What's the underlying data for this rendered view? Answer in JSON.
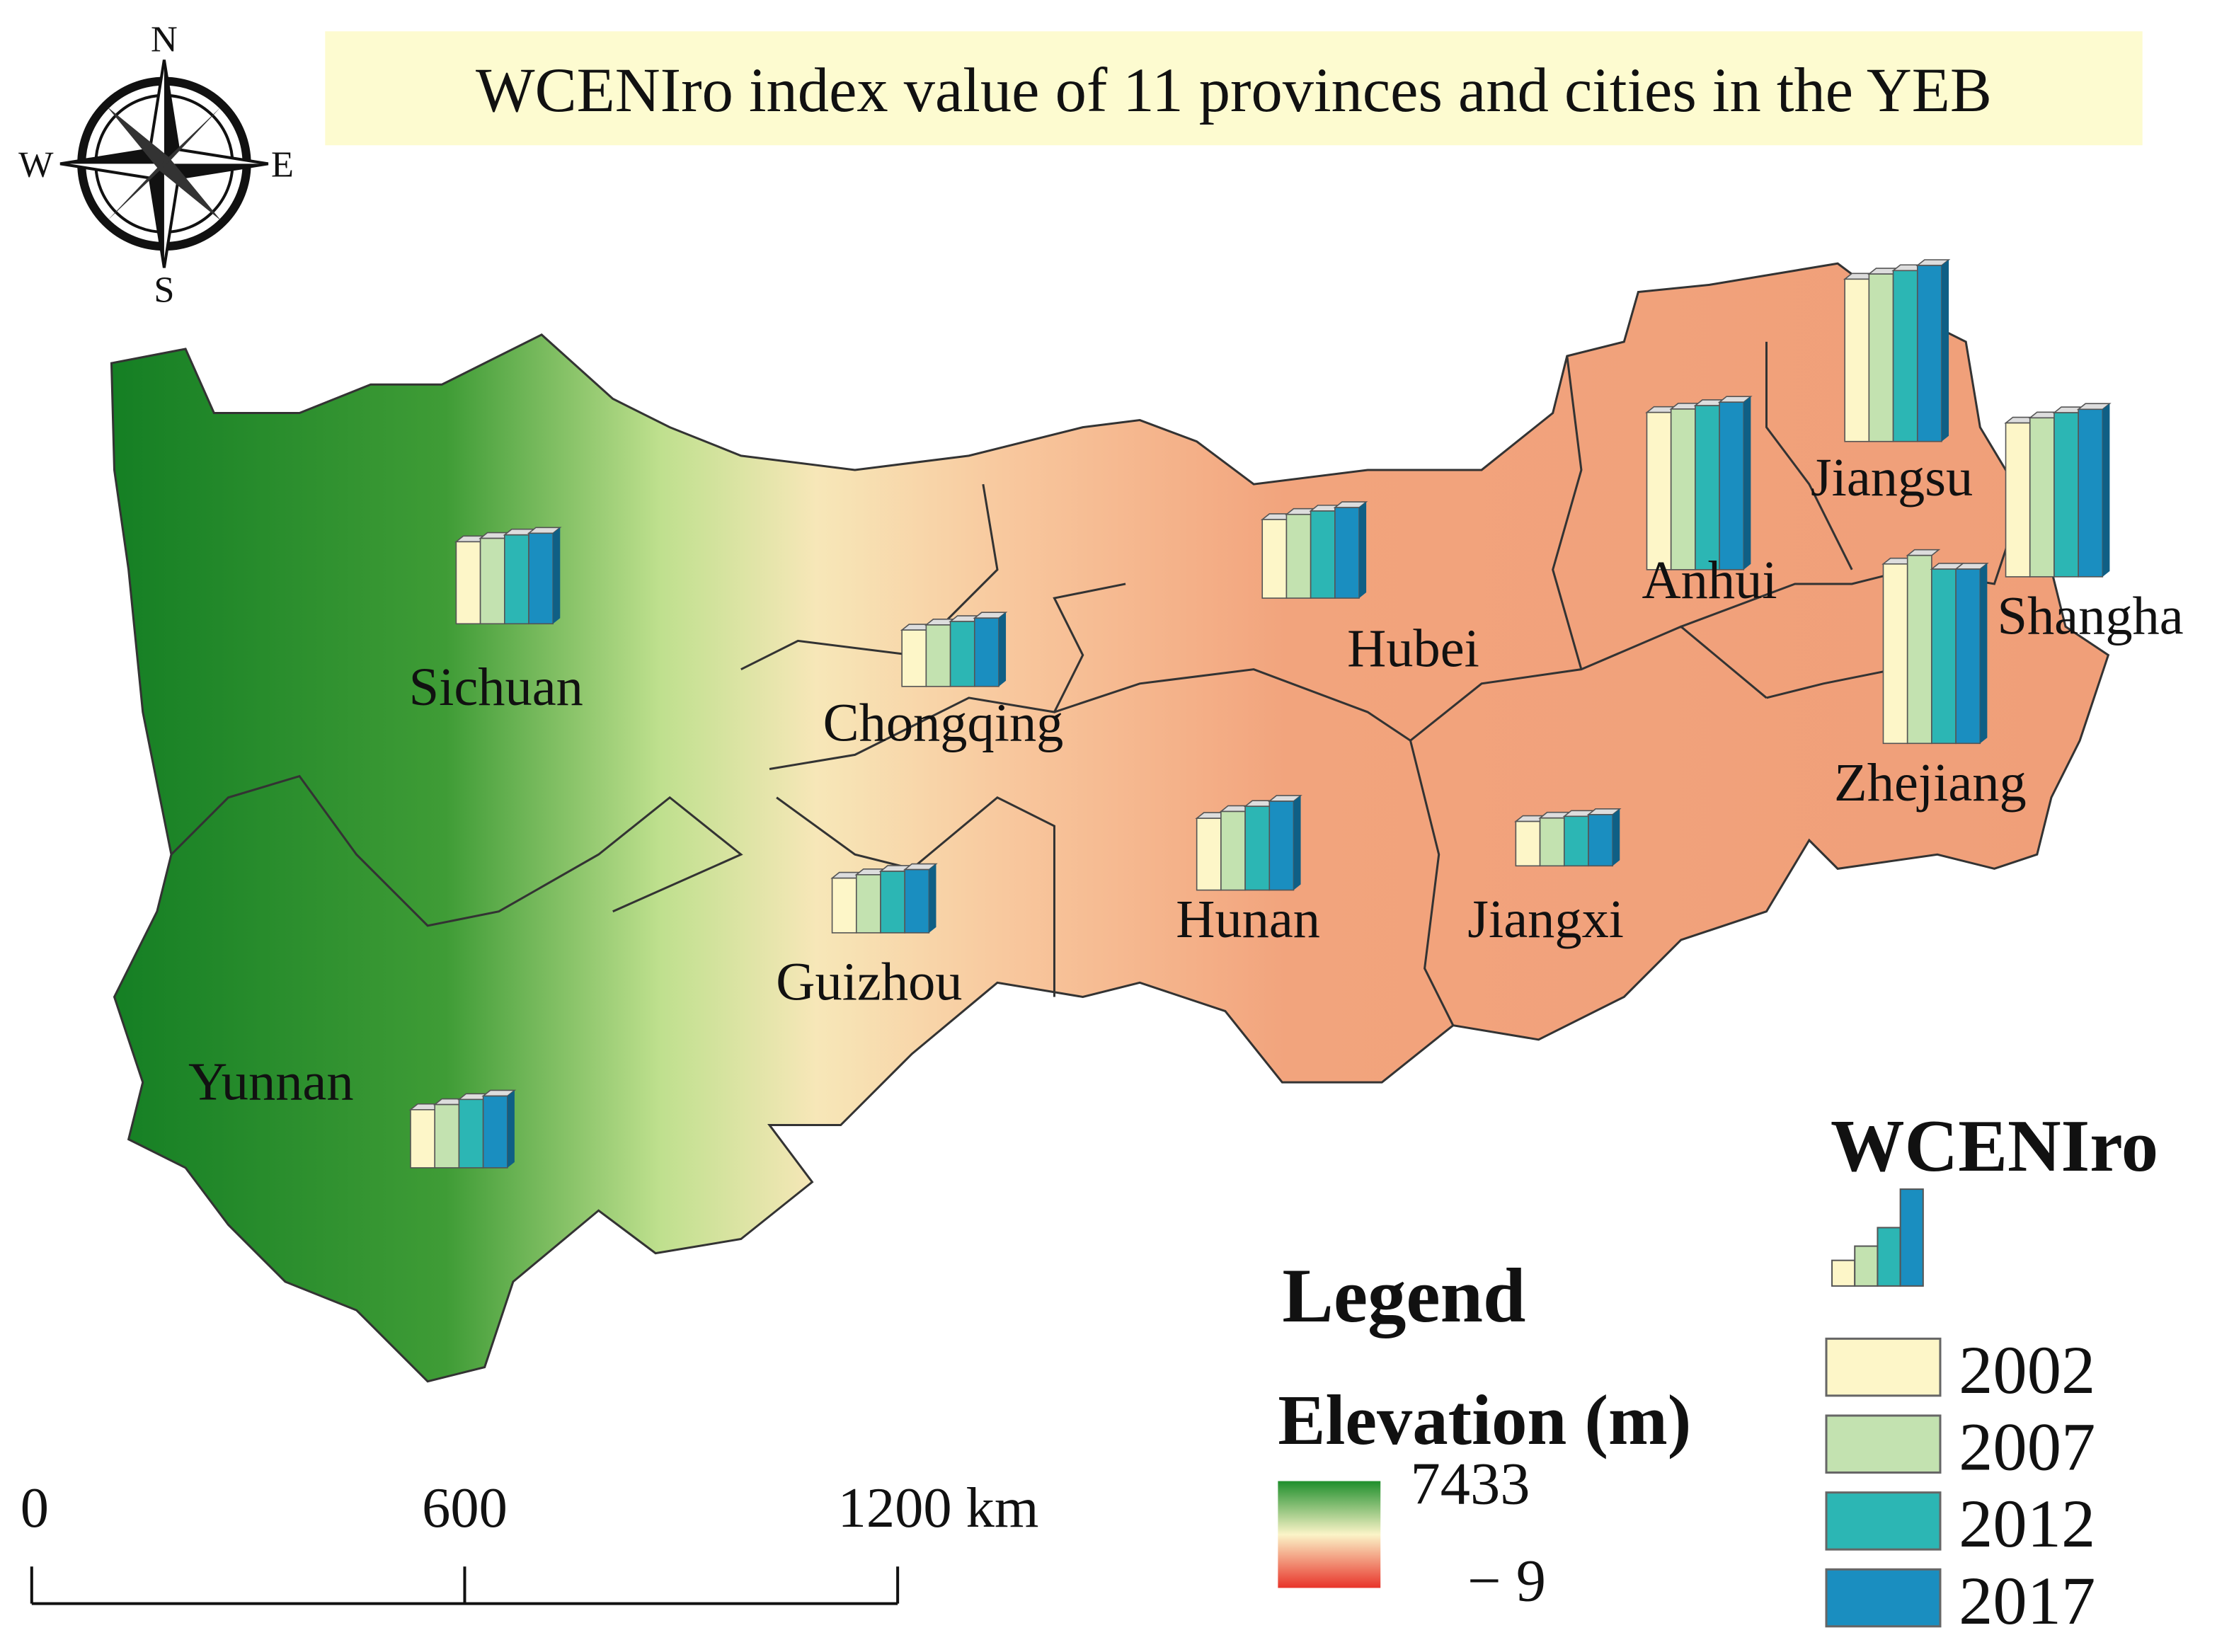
{
  "title": "WCENIro index value of 11 provinces and cities in the YEB",
  "compass": {
    "north": "N",
    "south": "S",
    "east": "E",
    "west": "W"
  },
  "provinces": [
    {
      "name": "Sichuan",
      "values": [
        0.48,
        0.5,
        0.52,
        0.53
      ]
    },
    {
      "name": "Chongqing",
      "values": [
        0.33,
        0.36,
        0.38,
        0.4
      ]
    },
    {
      "name": "Hubei",
      "values": [
        0.46,
        0.49,
        0.51,
        0.53
      ]
    },
    {
      "name": "Anhui",
      "values": [
        0.92,
        0.94,
        0.96,
        0.98
      ]
    },
    {
      "name": "Jiangsu",
      "values": [
        0.95,
        0.98,
        1.0,
        1.03
      ]
    },
    {
      "name": "Shangha",
      "values": [
        0.9,
        0.93,
        0.96,
        0.98
      ]
    },
    {
      "name": "Zhejiang",
      "values": [
        1.05,
        1.1,
        1.02,
        1.02
      ]
    },
    {
      "name": "Hunan",
      "values": [
        0.42,
        0.46,
        0.49,
        0.52
      ]
    },
    {
      "name": "Jiangxi",
      "values": [
        0.26,
        0.28,
        0.29,
        0.3
      ]
    },
    {
      "name": "Guizhou",
      "values": [
        0.32,
        0.34,
        0.36,
        0.37
      ]
    },
    {
      "name": "Yunnan",
      "values": [
        0.34,
        0.37,
        0.4,
        0.42
      ]
    }
  ],
  "legend": {
    "title": "Legend",
    "elevation_title": "Elevation (m)",
    "elevation_max": "7433",
    "elevation_min": "− 9",
    "index_title": "WCENIro",
    "series": [
      {
        "name": "2002",
        "color": "#fdf6c8"
      },
      {
        "name": "2007",
        "color": "#c3e2b0"
      },
      {
        "name": "2012",
        "color": "#2cb6b4"
      },
      {
        "name": "2017",
        "color": "#1a8ec0"
      }
    ]
  },
  "scale_bar": {
    "labels": [
      "0",
      "600",
      "1200 km"
    ]
  }
}
